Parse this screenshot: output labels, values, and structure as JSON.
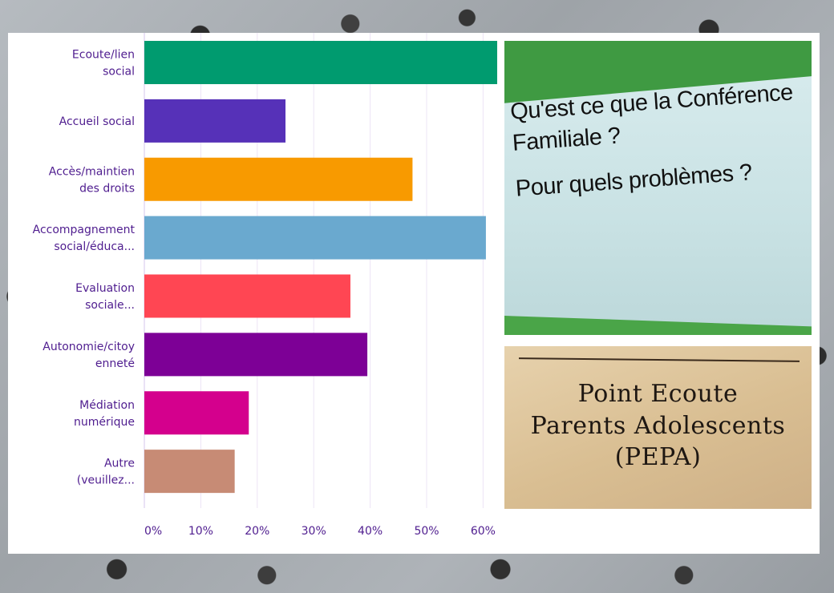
{
  "chart_data": {
    "type": "bar",
    "orientation": "horizontal",
    "categories": [
      [
        "Ecoute/lien",
        "social"
      ],
      [
        "Accueil social"
      ],
      [
        "Accès/maintien",
        "des droits"
      ],
      [
        "Accompagnement",
        "social/éduca..."
      ],
      [
        "Evaluation",
        "sociale..."
      ],
      [
        "Autonomie/citoy",
        "enneté"
      ],
      [
        "Médiation",
        "numérique"
      ],
      [
        "Autre",
        "(veuillez..."
      ]
    ],
    "values": [
      62.5,
      25,
      47.5,
      60.5,
      36.5,
      39.5,
      18.5,
      16
    ],
    "colors": [
      "#009b6f",
      "#5631b8",
      "#f89a00",
      "#6aa9cf",
      "#ff4653",
      "#7d0096",
      "#d4008d",
      "#c78b75"
    ],
    "x_ticks": [
      "0%",
      "10%",
      "20%",
      "30%",
      "40%",
      "50%",
      "60%"
    ],
    "xlim": [
      0,
      62.5
    ],
    "grid": true,
    "title": "",
    "xlabel": "",
    "ylabel": ""
  },
  "photos": {
    "slide": {
      "line1": "Qu'est ce que la Conférence",
      "line2": "Familiale ?",
      "line3": "Pour quels problèmes ?"
    },
    "card": {
      "line1": "Point Ecoute",
      "line2": "Parents Adolescents",
      "line3": "(PEPA)"
    }
  }
}
